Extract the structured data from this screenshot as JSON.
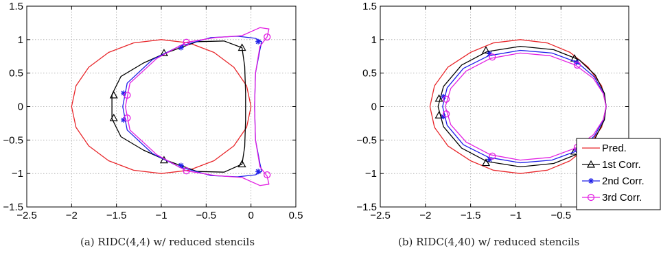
{
  "captions": {
    "a": "(a) RIDC(4,4) w/ reduced stencils",
    "b": "(b) RIDC(4,40) w/ reduced stencils"
  },
  "legend": [
    "Pred.",
    "1st Corr.",
    "2nd Corr.",
    "3rd Corr."
  ],
  "colors": {
    "pred": "#e8262a",
    "c1": "#000000",
    "c2": "#1e1ee8",
    "c3": "#e21ee2",
    "grid": "#a8a8a8"
  },
  "chart_data": [
    {
      "type": "line",
      "title": "",
      "xlabel": "",
      "ylabel": "",
      "xlim": [
        -2.5,
        0.5
      ],
      "ylim": [
        -1.5,
        1.5
      ],
      "xticks": [
        -2.5,
        -2,
        -1.5,
        -1,
        -0.5,
        0,
        0.5
      ],
      "xtick_labels": [
        "−2.5",
        "−2",
        "−1.5",
        "−1",
        "−0.5",
        "0",
        "0.5"
      ],
      "yticks": [
        -1.5,
        -1,
        -0.5,
        0,
        0.5,
        1,
        1.5
      ],
      "ytick_labels": [
        "−1.5",
        "−1",
        "−0.5",
        "0",
        "0.5",
        "1",
        "1.5"
      ],
      "grid": true,
      "series": [
        {
          "name": "Pred.",
          "marker": "none",
          "closed": true,
          "x": [
            -2.0,
            -1.951,
            -1.809,
            -1.588,
            -1.309,
            -1.0,
            -0.691,
            -0.412,
            -0.191,
            -0.049,
            0.0,
            -0.049,
            -0.191,
            -0.412,
            -0.691,
            -1.0,
            -1.309,
            -1.588,
            -1.809,
            -1.951
          ],
          "y": [
            0.0,
            0.309,
            0.588,
            0.809,
            0.951,
            1.0,
            0.951,
            0.809,
            0.588,
            0.309,
            0.0,
            -0.309,
            -0.588,
            -0.809,
            -0.951,
            -1.0,
            -0.951,
            -0.809,
            -0.588,
            -0.309
          ]
        },
        {
          "name": "1st Corr.",
          "marker": "triangle",
          "closed": true,
          "x": [
            -1.55,
            -1.45,
            -1.2,
            -0.95,
            -0.6,
            -0.3,
            -0.1,
            -0.07,
            -0.06,
            -0.06,
            -0.07,
            -0.1,
            -0.3,
            -0.6,
            -0.95,
            -1.2,
            -1.45,
            -1.55,
            -1.55
          ],
          "y": [
            0.18,
            0.45,
            0.65,
            0.8,
            0.97,
            0.98,
            0.88,
            0.6,
            0.2,
            -0.2,
            -0.6,
            -0.86,
            -0.98,
            -0.97,
            -0.8,
            -0.65,
            -0.45,
            -0.18,
            0.0
          ],
          "markers_x": [
            -1.53,
            -1.53,
            -0.97,
            -0.97,
            -0.1,
            -0.1
          ],
          "markers_y": [
            0.17,
            -0.17,
            0.8,
            -0.8,
            0.88,
            -0.86
          ]
        },
        {
          "name": "2nd Corr.",
          "marker": "asterisk",
          "closed": true,
          "x": [
            -1.43,
            -1.38,
            -1.1,
            -0.8,
            -0.45,
            -0.15,
            0.05,
            0.12,
            0.1,
            0.05,
            0.04,
            0.05,
            0.1,
            0.12,
            0.05,
            -0.15,
            -0.45,
            -0.8,
            -1.1,
            -1.38,
            -1.43
          ],
          "y": [
            0.0,
            0.35,
            0.7,
            0.9,
            1.03,
            1.05,
            1.02,
            0.97,
            0.85,
            0.5,
            0.0,
            -0.5,
            -0.85,
            -0.97,
            -1.02,
            -1.05,
            -1.03,
            -0.9,
            -0.7,
            -0.35,
            0.0
          ],
          "markers_x": [
            -1.42,
            -1.42,
            -0.78,
            -0.78,
            0.08,
            0.08
          ],
          "markers_y": [
            0.2,
            -0.2,
            0.88,
            -0.88,
            0.97,
            -0.97
          ]
        },
        {
          "name": "3rd Corr.",
          "marker": "circle",
          "closed": true,
          "x": [
            -1.4,
            -1.35,
            -1.05,
            -0.72,
            -0.4,
            -0.1,
            0.1,
            0.2,
            0.18,
            0.1,
            0.05,
            0.04,
            0.05,
            0.1,
            0.18,
            0.2,
            0.1,
            -0.1,
            -0.4,
            -0.72,
            -1.05,
            -1.35,
            -1.4
          ],
          "y": [
            0.0,
            0.35,
            0.72,
            0.96,
            1.03,
            1.06,
            1.18,
            1.16,
            1.04,
            0.9,
            0.5,
            0.0,
            -0.5,
            -0.9,
            -1.04,
            -1.16,
            -1.18,
            -1.06,
            -1.03,
            -0.96,
            -0.72,
            -0.35,
            0.0
          ],
          "markers_x": [
            -1.38,
            -1.38,
            -0.72,
            -0.72,
            0.18,
            0.18
          ],
          "markers_y": [
            0.17,
            -0.17,
            0.96,
            -0.96,
            1.04,
            -1.02
          ]
        }
      ]
    },
    {
      "type": "line",
      "title": "",
      "xlabel": "",
      "ylabel": "",
      "xlim": [
        -2.5,
        0.25
      ],
      "ylim": [
        -1.5,
        1.5
      ],
      "xticks": [
        -2.5,
        -2,
        -1.5,
        -1,
        -0.5
      ],
      "xtick_labels": [
        "−2.5",
        "−2",
        "−1.5",
        "−1",
        "−0.5"
      ],
      "yticks": [
        -1.5,
        -1,
        -0.5,
        0,
        0.5,
        1,
        1.5
      ],
      "ytick_labels": [
        "−1.5",
        "−1",
        "−0.5",
        "0",
        "0.5",
        "1",
        "1.5"
      ],
      "grid": true,
      "legend_position": "lower-right",
      "series": [
        {
          "name": "Pred.",
          "marker": "none",
          "closed": true,
          "x": [
            -1.95,
            -1.9,
            -1.75,
            -1.5,
            -1.25,
            -0.95,
            -0.65,
            -0.4,
            -0.2,
            -0.05,
            0.0,
            -0.05,
            -0.2,
            -0.4,
            -0.65,
            -0.95,
            -1.25,
            -1.5,
            -1.75,
            -1.9
          ],
          "y": [
            0.0,
            0.31,
            0.59,
            0.81,
            0.95,
            1.0,
            0.95,
            0.81,
            0.59,
            0.31,
            0.0,
            -0.31,
            -0.59,
            -0.81,
            -0.95,
            -1.0,
            -0.95,
            -0.81,
            -0.59,
            -0.31
          ]
        },
        {
          "name": "1st Corr.",
          "marker": "triangle",
          "closed": true,
          "x": [
            -1.86,
            -1.8,
            -1.6,
            -1.32,
            -0.95,
            -0.58,
            -0.3,
            -0.12,
            -0.02,
            0.0,
            -0.02,
            -0.12,
            -0.3,
            -0.58,
            -0.95,
            -1.32,
            -1.6,
            -1.8
          ],
          "y": [
            0.0,
            0.3,
            0.62,
            0.82,
            0.9,
            0.85,
            0.7,
            0.47,
            0.2,
            0.0,
            -0.2,
            -0.47,
            -0.7,
            -0.85,
            -0.9,
            -0.82,
            -0.62,
            -0.3
          ],
          "markers_x": [
            -1.85,
            -1.85,
            -1.33,
            -1.33,
            -0.35,
            -0.35
          ],
          "markers_y": [
            0.12,
            -0.13,
            0.84,
            -0.84,
            0.72,
            -0.67
          ]
        },
        {
          "name": "2nd Corr.",
          "marker": "asterisk",
          "closed": true,
          "x": [
            -1.81,
            -1.76,
            -1.58,
            -1.3,
            -0.95,
            -0.6,
            -0.32,
            -0.13,
            -0.03,
            0.0,
            -0.03,
            -0.13,
            -0.32,
            -0.6,
            -0.95,
            -1.3,
            -1.58,
            -1.76
          ],
          "y": [
            0.0,
            0.28,
            0.57,
            0.76,
            0.84,
            0.8,
            0.66,
            0.44,
            0.2,
            0.0,
            -0.2,
            -0.44,
            -0.66,
            -0.8,
            -0.84,
            -0.76,
            -0.57,
            -0.28
          ],
          "markers_x": [
            -1.8,
            -1.8,
            -1.29,
            -1.29,
            -0.33,
            -0.33
          ],
          "markers_y": [
            0.15,
            -0.15,
            0.79,
            -0.79,
            0.66,
            -0.65
          ]
        },
        {
          "name": "3rd Corr.",
          "marker": "circle",
          "closed": true,
          "x": [
            -1.78,
            -1.72,
            -1.55,
            -1.28,
            -0.95,
            -0.62,
            -0.34,
            -0.14,
            -0.03,
            0.0,
            -0.03,
            -0.14,
            -0.34,
            -0.62,
            -0.95,
            -1.28,
            -1.55,
            -1.72
          ],
          "y": [
            0.0,
            0.27,
            0.53,
            0.72,
            0.8,
            0.76,
            0.62,
            0.42,
            0.19,
            0.0,
            -0.19,
            -0.42,
            -0.62,
            -0.76,
            -0.8,
            -0.72,
            -0.53,
            -0.27
          ],
          "markers_x": [
            -1.77,
            -1.77,
            -1.26,
            -1.26,
            -0.32,
            -0.32
          ],
          "markers_y": [
            0.11,
            -0.11,
            0.74,
            -0.74,
            0.62,
            -0.61
          ]
        }
      ]
    }
  ]
}
